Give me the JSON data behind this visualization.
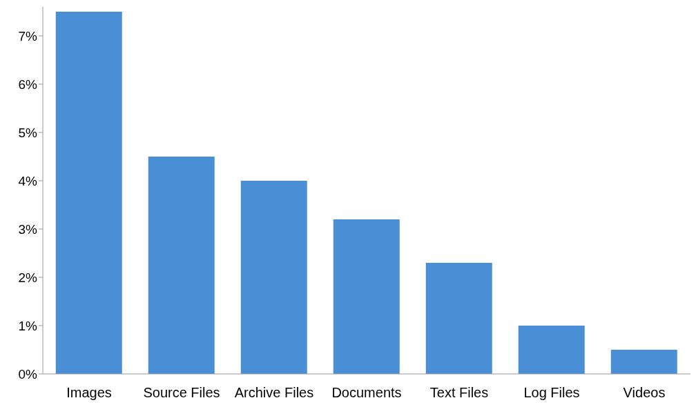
{
  "chart_data": {
    "type": "bar",
    "categories": [
      "Images",
      "Source Files",
      "Archive Files",
      "Documents",
      "Text Files",
      "Log Files",
      "Videos"
    ],
    "values": [
      7.5,
      4.5,
      4.0,
      3.2,
      2.3,
      1.0,
      0.5
    ],
    "color": "#4a8fd6",
    "ylim": [
      0,
      7.6
    ],
    "yticks": [
      {
        "value": 0,
        "label": "0%"
      },
      {
        "value": 1,
        "label": "1%"
      },
      {
        "value": 2,
        "label": "2%"
      },
      {
        "value": 3,
        "label": "3%"
      },
      {
        "value": 4,
        "label": "4%"
      },
      {
        "value": 5,
        "label": "5%"
      },
      {
        "value": 6,
        "label": "6%"
      },
      {
        "value": 7,
        "label": "7%"
      }
    ],
    "grid": false,
    "legend": false
  }
}
